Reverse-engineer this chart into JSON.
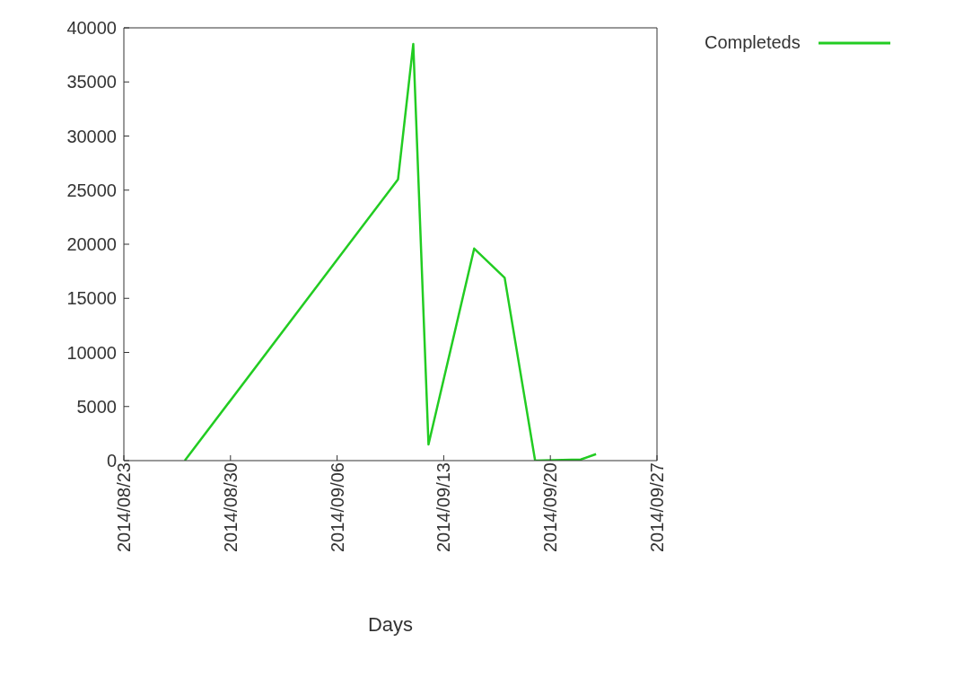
{
  "chart_data": {
    "type": "line",
    "xlabel": "Days",
    "x": [
      "2014-08-27",
      "2014-09-10",
      "2014-09-11",
      "2014-09-12",
      "2014-09-15",
      "2014-09-17",
      "2014-09-19",
      "2014-09-22",
      "2014-09-23"
    ],
    "series": [
      {
        "name": "Completeds",
        "color": "#22cc22",
        "values": [
          0,
          26000,
          38500,
          1500,
          19600,
          16900,
          0,
          100,
          600
        ]
      }
    ],
    "xlim": [
      "2014-08-23",
      "2014-09-27"
    ],
    "xticks": [
      {
        "value": "2014-08-23",
        "label": "2014/08/23"
      },
      {
        "value": "2014-08-30",
        "label": "2014/08/30"
      },
      {
        "value": "2014-09-06",
        "label": "2014/09/06"
      },
      {
        "value": "2014-09-13",
        "label": "2014/09/13"
      },
      {
        "value": "2014-09-20",
        "label": "2014/09/20"
      },
      {
        "value": "2014-09-27",
        "label": "2014/09/27"
      }
    ],
    "ylim": [
      0,
      40000
    ],
    "yticks": [
      0,
      5000,
      10000,
      15000,
      20000,
      25000,
      30000,
      35000,
      40000
    ],
    "legend": "top right",
    "marker": "none",
    "line_style": "solid"
  }
}
